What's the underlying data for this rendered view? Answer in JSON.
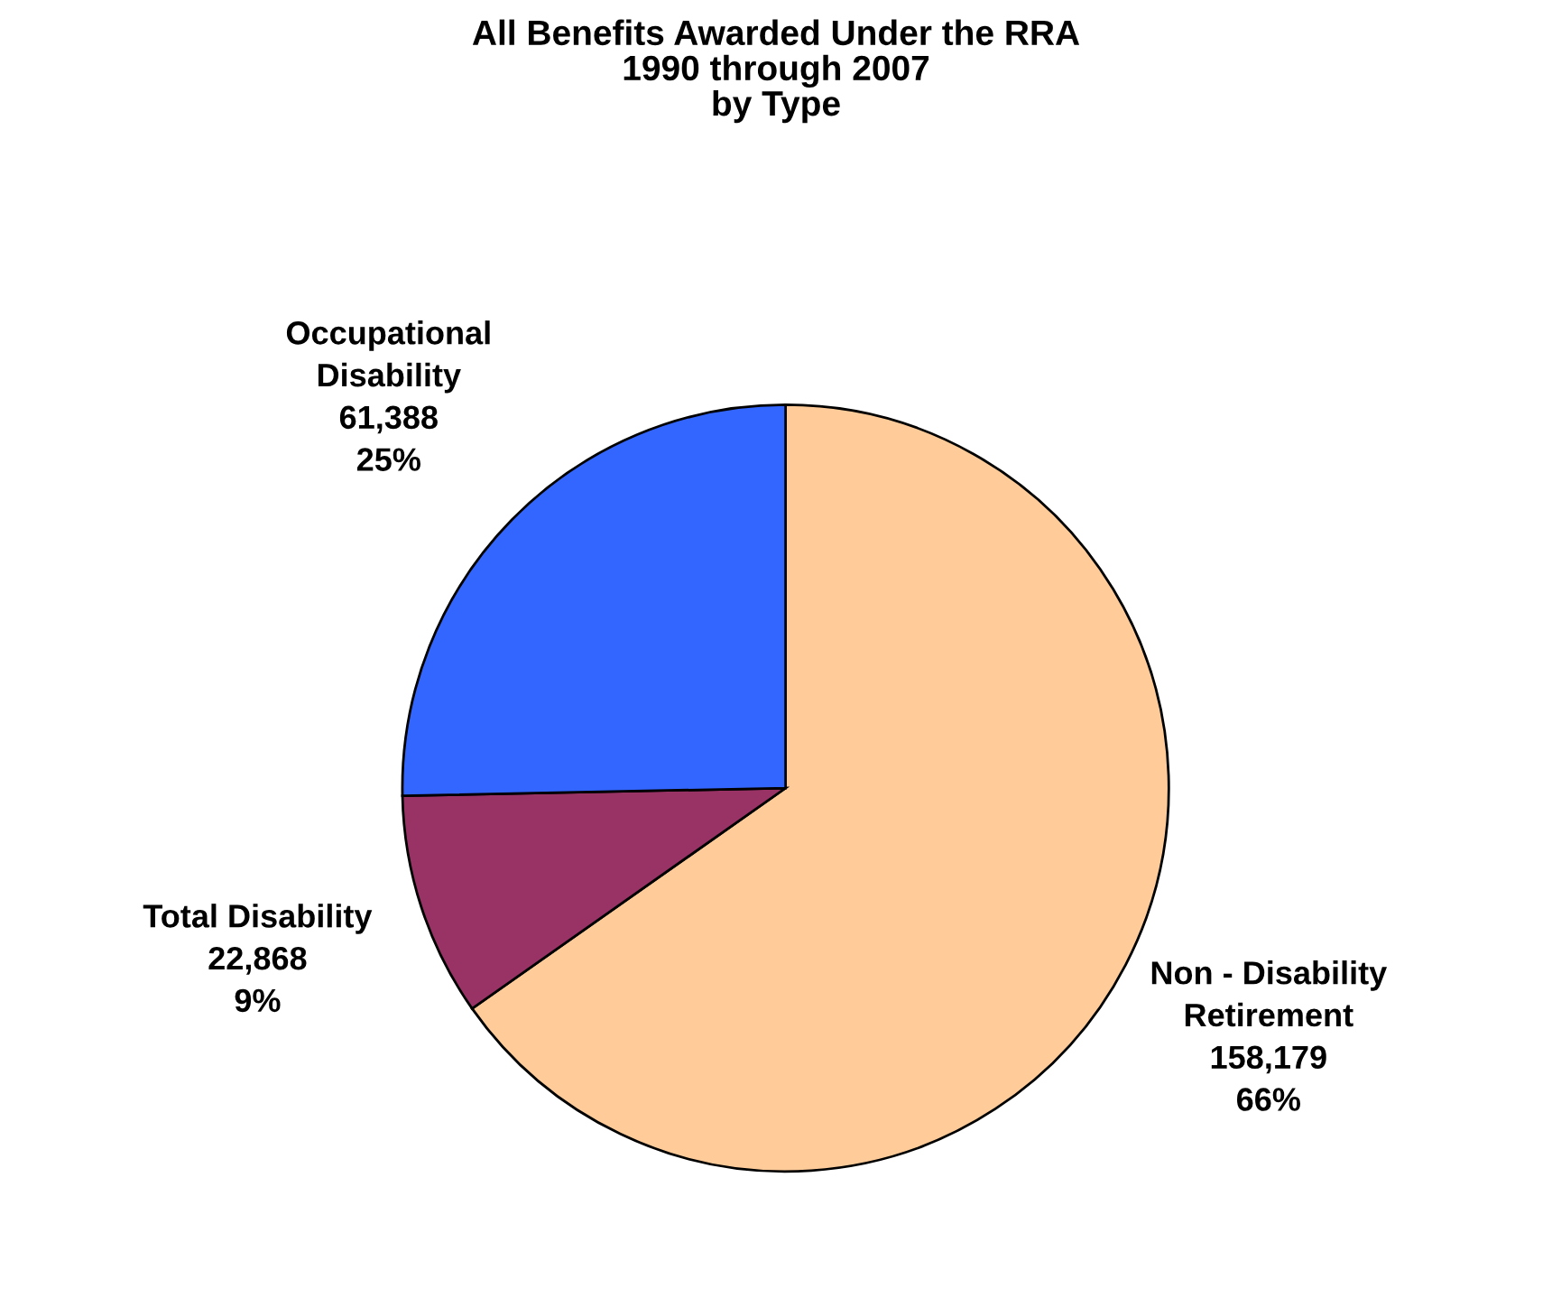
{
  "chart_data": {
    "type": "pie",
    "title": "All Benefits Awarded Under the RRA\n1990 through 2007\nby Type",
    "categories": [
      "Non - Disability\nRetirement",
      "Total Disability",
      "Occupational\nDisability"
    ],
    "values": [
      158179,
      22868,
      61388
    ],
    "value_labels": [
      "158,179\n66%",
      "22,868\n9%",
      "61,388\n25%"
    ],
    "colors": [
      "#ffcc99",
      "#993366",
      "#3366ff"
    ],
    "legend": false
  }
}
